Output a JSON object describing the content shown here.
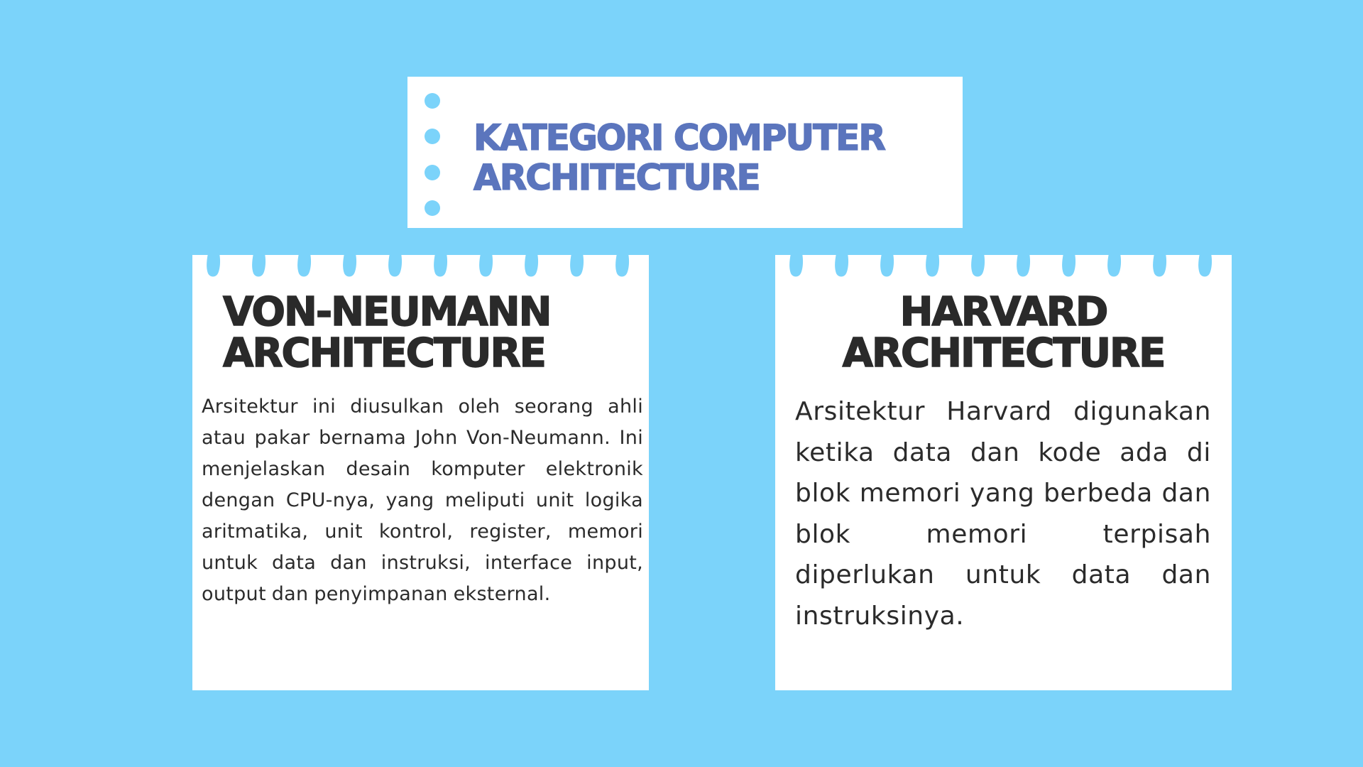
{
  "colors": {
    "background": "#7bd3fa",
    "card": "#ffffff",
    "title_text": "#5b75bd",
    "heading_text": "#2a2a2a",
    "body_text": "#2b2b2b"
  },
  "title": {
    "text": "KATEGORI COMPUTER\nARCHITECTURE",
    "decoration_icon": "binder-dots-icon"
  },
  "cards": [
    {
      "heading": "VON-NEUMANN\nARCHITECTURE",
      "body": "Arsitektur ini diusulkan oleh seorang ahli atau pakar bernama John Von-Neumann. Ini menjelaskan desain komputer elektronik dengan CPU-nya, yang meliputi unit logika aritmatika, unit kontrol, register, memori untuk data dan instruksi, interface input, output dan penyimpanan eksternal.",
      "decoration_icon": "torn-paper-edge-icon"
    },
    {
      "heading": "HARVARD\nARCHITECTURE",
      "body": "Arsitektur Harvard digunakan ketika data dan kode ada di blok memori yang berbeda dan blok memori terpisah diperlukan untuk data dan instruksinya.",
      "decoration_icon": "torn-paper-edge-icon"
    }
  ]
}
